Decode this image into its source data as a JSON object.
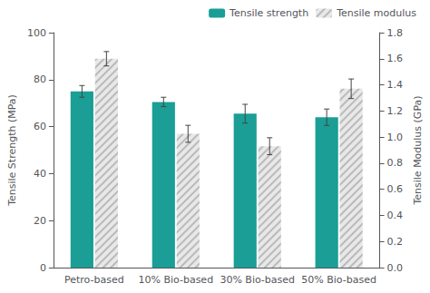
{
  "chart_data": {
    "type": "bar",
    "categories": [
      "Petro-based",
      "10% Bio-based",
      "30% Bio-based",
      "50% Bio-based"
    ],
    "series": [
      {
        "name": "Tensile strength",
        "color": "#1a9e96",
        "values": [
          75.0,
          70.5,
          65.5,
          64.0
        ],
        "errors": [
          2.5,
          2.0,
          4.0,
          3.5
        ]
      },
      {
        "name": "Tensile modulus",
        "color": "#e8e8e8",
        "values": [
          1.6,
          1.025,
          0.93,
          1.37
        ],
        "errors": [
          0.055,
          0.065,
          0.065,
          0.075
        ],
        "axis": "y2"
      }
    ],
    "ylabel": "Tensile Strength (MPa)",
    "y2label": "Tensile Modulus (GPa)",
    "ylim": [
      0,
      100
    ],
    "yticks": [
      0,
      20,
      40,
      60,
      80,
      100
    ],
    "y2lim": [
      0,
      1.8
    ],
    "y2ticks": [
      {
        "value": 0,
        "label": "0.0"
      },
      0.2,
      0.4,
      0.6,
      0.8,
      {
        "value": 1,
        "label": "1.0"
      },
      1.2,
      1.4,
      1.6,
      1.8
    ],
    "grid": false,
    "legend": "upper right"
  }
}
